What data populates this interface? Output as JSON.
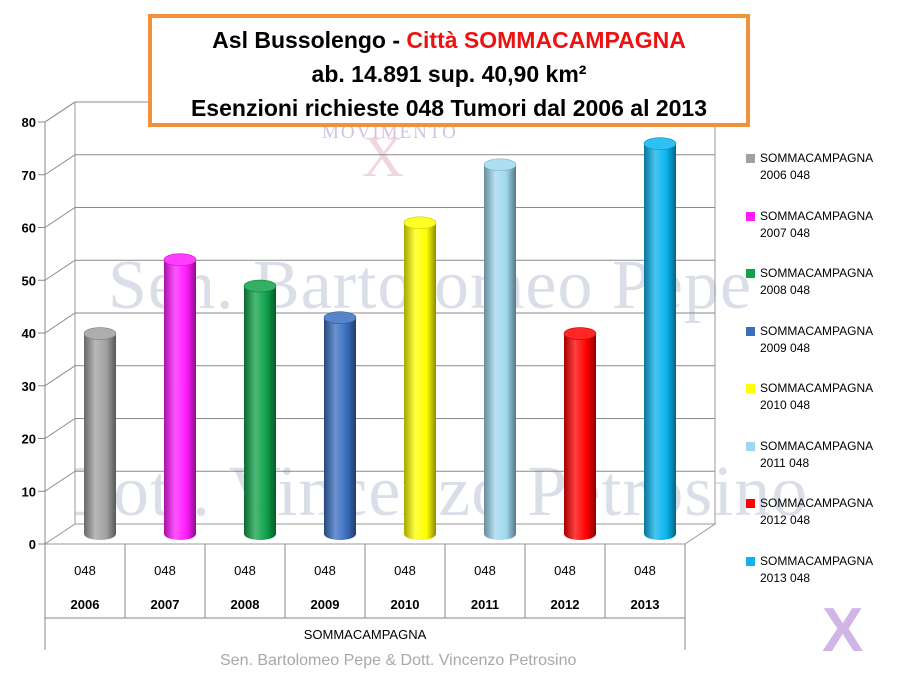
{
  "title": {
    "line1_prefix": "Asl Bussolengo - ",
    "line1_city": "Città SOMMACAMPAGNA",
    "line2": "ab. 14.891 sup. 40,90 km²",
    "line3": "Esenzioni richieste 048 Tumori  dal 2006 al 2013"
  },
  "watermarks": {
    "line1": "Sen. Bartolomeo Pepe",
    "line2": "Dott. Vincenzo Petrosino",
    "logo_text": "MOVIMENTO",
    "logo_x": "X",
    "corner_x": "X"
  },
  "footer": "Sen. Bartolomeo Pepe &  Dott. Vincenzo Petrosino",
  "chart_data": {
    "type": "bar",
    "categories": [
      "2006",
      "2007",
      "2008",
      "2009",
      "2010",
      "2011",
      "2012",
      "2013"
    ],
    "category_code": "048",
    "xlabel": "SOMMACAMPAGNA",
    "ylim": [
      0,
      80
    ],
    "yticks": [
      0,
      10,
      20,
      30,
      40,
      50,
      60,
      70,
      80
    ],
    "grid": true,
    "legend_position": "right",
    "series": [
      {
        "name": "SOMMACAMPAGNA 2006 048",
        "category": "2006",
        "value": 38,
        "color": "#a0a0a0"
      },
      {
        "name": "SOMMACAMPAGNA 2007 048",
        "category": "2007",
        "value": 52,
        "color": "#ff1bff"
      },
      {
        "name": "SOMMACAMPAGNA 2008 048",
        "category": "2008",
        "value": 47,
        "color": "#0fa24a"
      },
      {
        "name": "SOMMACAMPAGNA 2009 048",
        "category": "2009",
        "value": 41,
        "color": "#3a6fc0"
      },
      {
        "name": "SOMMACAMPAGNA 2010 048",
        "category": "2010",
        "value": 59,
        "color": "#ffff00"
      },
      {
        "name": "SOMMACAMPAGNA 2011 048",
        "category": "2011",
        "value": 70,
        "color": "#9fd8ee"
      },
      {
        "name": "SOMMACAMPAGNA 2012 048",
        "category": "2012",
        "value": 38,
        "color": "#ff0000"
      },
      {
        "name": "SOMMACAMPAGNA 2013 048",
        "category": "2013",
        "value": 74,
        "color": "#0ab4ee"
      }
    ]
  }
}
